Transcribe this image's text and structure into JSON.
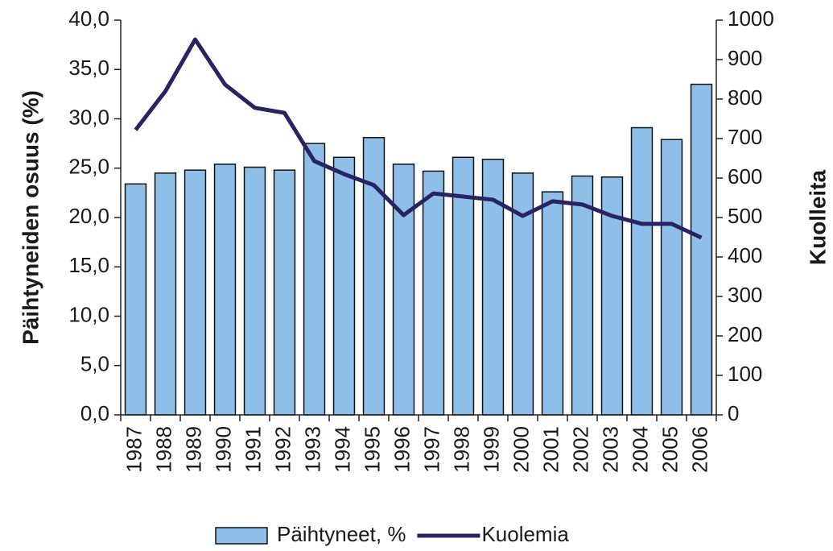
{
  "chart_data": {
    "type": "bar_line",
    "y_label": "Päihtyneiden osuus (%)",
    "y2_label": "Kuolleita",
    "categories": [
      "1987",
      "1988",
      "1989",
      "1990",
      "1991",
      "1992",
      "1993",
      "1994",
      "1995",
      "1996",
      "1997",
      "1998",
      "1999",
      "2000",
      "2001",
      "2002",
      "2003",
      "2004",
      "2005",
      "2006"
    ],
    "series": [
      {
        "name": "Päihtyneet, %",
        "color": "#8ebfe9",
        "kind": "bar",
        "values": [
          23.4,
          24.5,
          24.8,
          25.4,
          25.1,
          24.8,
          27.5,
          26.1,
          28.1,
          25.4,
          24.7,
          26.1,
          25.9,
          24.5,
          22.6,
          24.2,
          24.1,
          29.1,
          27.9,
          33.5
        ]
      },
      {
        "name": "Kuolemia",
        "color": "#262464",
        "kind": "line",
        "axis": "y2",
        "values": [
          722,
          820,
          951,
          837,
          778,
          765,
          643,
          610,
          582,
          506,
          561,
          553,
          545,
          504,
          541,
          533,
          504,
          484,
          484,
          449
        ]
      }
    ],
    "ylim": [
      0,
      40
    ],
    "yticks": [
      {
        "value": 0,
        "label": "0,0"
      },
      {
        "value": 5,
        "label": "5,0"
      },
      {
        "value": 10,
        "label": "10,0"
      },
      {
        "value": 15,
        "label": "15,0"
      },
      {
        "value": 20,
        "label": "20,0"
      },
      {
        "value": 25,
        "label": "25,0"
      },
      {
        "value": 30,
        "label": "30,0"
      },
      {
        "value": 35,
        "label": "35,0"
      },
      {
        "value": 40,
        "label": "40,0"
      }
    ],
    "y2lim": [
      0,
      1000
    ],
    "y2ticks": [
      0,
      100,
      200,
      300,
      400,
      500,
      600,
      700,
      800,
      900,
      1000
    ],
    "legend": "bottom"
  }
}
